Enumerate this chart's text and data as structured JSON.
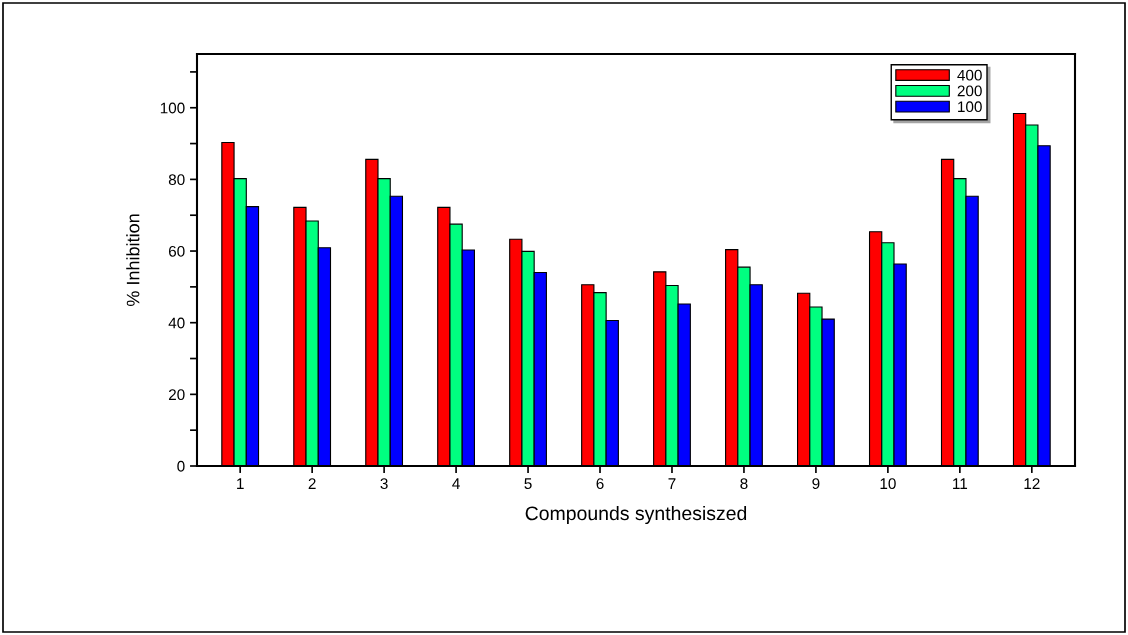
{
  "chart_data": {
    "type": "bar",
    "xlabel": "Compounds synthesiszed",
    "ylabel": "% Inhibition",
    "categories": [
      "1",
      "2",
      "3",
      "4",
      "5",
      "6",
      "7",
      "8",
      "9",
      "10",
      "11",
      "12"
    ],
    "series": [
      {
        "name": "400",
        "color": "#ff0000",
        "values": [
          90.3,
          72.2,
          85.6,
          72.2,
          63.3,
          50.6,
          54.2,
          60.4,
          48.2,
          65.4,
          85.6,
          98.4
        ]
      },
      {
        "name": "200",
        "color": "#00ff80",
        "values": [
          80.2,
          68.4,
          80.2,
          67.5,
          59.9,
          48.4,
          50.4,
          55.5,
          44.4,
          62.3,
          80.2,
          95.2
        ]
      },
      {
        "name": "100",
        "color": "#0000ff",
        "values": [
          72.4,
          60.9,
          75.3,
          60.3,
          54.0,
          40.6,
          45.2,
          50.6,
          41.0,
          56.4,
          75.3,
          89.4
        ]
      }
    ],
    "ylim": [
      0,
      115
    ],
    "yticks": [
      0,
      {
        "value": 10,
        "label": null
      },
      20,
      {
        "value": 30,
        "label": null
      },
      40,
      {
        "value": 50,
        "label": null
      },
      60,
      {
        "value": 70,
        "label": null
      },
      80,
      {
        "value": 90,
        "label": null
      },
      100,
      {
        "value": 110,
        "label": null
      }
    ],
    "legend": "top right",
    "grid": false
  }
}
